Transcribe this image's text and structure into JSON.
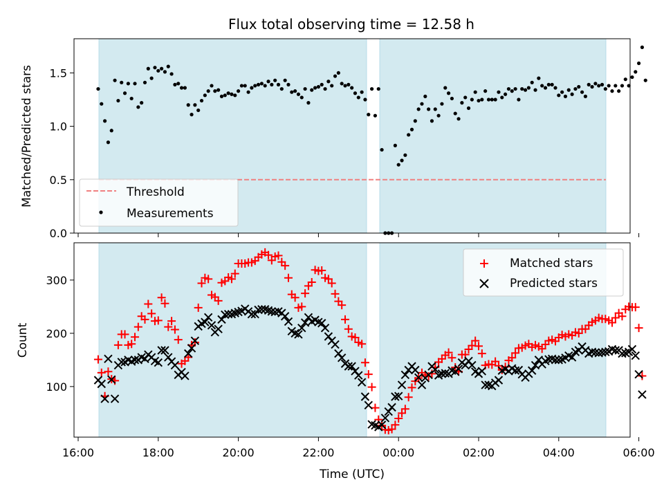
{
  "chart_data": [
    {
      "type": "scatter",
      "title": "Flux total observing time = 12.58 h",
      "xlabel": "",
      "ylabel": "Matched/Predicted stars",
      "ylim": [
        0,
        1.82
      ],
      "yticks": [
        "0.0",
        "0.5",
        "1.0",
        "1.5"
      ],
      "grid": false,
      "legend_position": "lower-left",
      "threshold": {
        "name": "Threshold",
        "value": 0.5,
        "color": "#f08080"
      },
      "series": [
        {
          "name": "Measurements",
          "color": "#000000",
          "points": [
            [
              "16:30",
              1.35
            ],
            [
              "16:35",
              1.21
            ],
            [
              "16:40",
              1.05
            ],
            [
              "16:45",
              0.85
            ],
            [
              "16:50",
              0.96
            ],
            [
              "16:55",
              1.43
            ],
            [
              "17:00",
              1.24
            ],
            [
              "17:05",
              1.41
            ],
            [
              "17:10",
              1.31
            ],
            [
              "17:15",
              1.4
            ],
            [
              "17:20",
              1.26
            ],
            [
              "17:25",
              1.4
            ],
            [
              "17:30",
              1.18
            ],
            [
              "17:35",
              1.22
            ],
            [
              "17:40",
              1.41
            ],
            [
              "17:45",
              1.54
            ],
            [
              "17:50",
              1.45
            ],
            [
              "17:55",
              1.55
            ],
            [
              "18:00",
              1.52
            ],
            [
              "18:05",
              1.54
            ],
            [
              "18:10",
              1.51
            ],
            [
              "18:15",
              1.56
            ],
            [
              "18:20",
              1.49
            ],
            [
              "18:25",
              1.39
            ],
            [
              "18:30",
              1.4
            ],
            [
              "18:35",
              1.36
            ],
            [
              "18:40",
              1.36
            ],
            [
              "18:45",
              1.2
            ],
            [
              "18:50",
              1.11
            ],
            [
              "18:55",
              1.2
            ],
            [
              "19:00",
              1.15
            ],
            [
              "19:05",
              1.24
            ],
            [
              "19:10",
              1.29
            ],
            [
              "19:15",
              1.33
            ],
            [
              "19:20",
              1.38
            ],
            [
              "19:25",
              1.33
            ],
            [
              "19:30",
              1.34
            ],
            [
              "19:35",
              1.28
            ],
            [
              "19:40",
              1.29
            ],
            [
              "19:45",
              1.31
            ],
            [
              "19:50",
              1.3
            ],
            [
              "19:55",
              1.29
            ],
            [
              "20:00",
              1.33
            ],
            [
              "20:05",
              1.38
            ],
            [
              "20:10",
              1.38
            ],
            [
              "20:15",
              1.32
            ],
            [
              "20:20",
              1.36
            ],
            [
              "20:25",
              1.38
            ],
            [
              "20:30",
              1.39
            ],
            [
              "20:35",
              1.4
            ],
            [
              "20:40",
              1.38
            ],
            [
              "20:45",
              1.42
            ],
            [
              "20:50",
              1.39
            ],
            [
              "20:55",
              1.43
            ],
            [
              "21:00",
              1.39
            ],
            [
              "21:05",
              1.35
            ],
            [
              "21:10",
              1.43
            ],
            [
              "21:15",
              1.39
            ],
            [
              "21:20",
              1.32
            ],
            [
              "21:25",
              1.33
            ],
            [
              "21:30",
              1.3
            ],
            [
              "21:35",
              1.27
            ],
            [
              "21:40",
              1.35
            ],
            [
              "21:45",
              1.22
            ],
            [
              "21:50",
              1.34
            ],
            [
              "21:55",
              1.36
            ],
            [
              "22:00",
              1.37
            ],
            [
              "22:05",
              1.39
            ],
            [
              "22:10",
              1.35
            ],
            [
              "22:15",
              1.42
            ],
            [
              "22:20",
              1.38
            ],
            [
              "22:25",
              1.47
            ],
            [
              "22:30",
              1.5
            ],
            [
              "22:35",
              1.4
            ],
            [
              "22:40",
              1.38
            ],
            [
              "22:45",
              1.39
            ],
            [
              "22:50",
              1.36
            ],
            [
              "22:55",
              1.31
            ],
            [
              "23:00",
              1.27
            ],
            [
              "23:05",
              1.32
            ],
            [
              "23:10",
              1.25
            ],
            [
              "23:15",
              1.11
            ],
            [
              "23:20",
              1.35
            ],
            [
              "23:25",
              1.1
            ],
            [
              "23:30",
              1.35
            ],
            [
              "23:35",
              0.78
            ],
            [
              "23:40",
              0.0
            ],
            [
              "23:45",
              0.0
            ],
            [
              "23:50",
              0.0
            ],
            [
              "23:55",
              0.82
            ],
            [
              "00:00",
              0.64
            ],
            [
              "00:05",
              0.68
            ],
            [
              "00:10",
              0.73
            ],
            [
              "00:15",
              0.92
            ],
            [
              "00:20",
              0.97
            ],
            [
              "00:25",
              1.05
            ],
            [
              "00:30",
              1.16
            ],
            [
              "00:35",
              1.21
            ],
            [
              "00:40",
              1.28
            ],
            [
              "00:45",
              1.16
            ],
            [
              "00:50",
              1.05
            ],
            [
              "00:55",
              1.16
            ],
            [
              "01:00",
              1.1
            ],
            [
              "01:05",
              1.21
            ],
            [
              "01:10",
              1.36
            ],
            [
              "01:15",
              1.31
            ],
            [
              "01:20",
              1.26
            ],
            [
              "01:25",
              1.12
            ],
            [
              "01:30",
              1.07
            ],
            [
              "01:35",
              1.22
            ],
            [
              "01:40",
              1.27
            ],
            [
              "01:45",
              1.17
            ],
            [
              "01:50",
              1.25
            ],
            [
              "01:55",
              1.32
            ],
            [
              "02:00",
              1.24
            ],
            [
              "02:05",
              1.25
            ],
            [
              "02:10",
              1.33
            ],
            [
              "02:15",
              1.25
            ],
            [
              "02:20",
              1.25
            ],
            [
              "02:25",
              1.25
            ],
            [
              "02:30",
              1.32
            ],
            [
              "02:35",
              1.27
            ],
            [
              "02:40",
              1.3
            ],
            [
              "02:45",
              1.35
            ],
            [
              "02:50",
              1.33
            ],
            [
              "02:55",
              1.35
            ],
            [
              "03:00",
              1.25
            ],
            [
              "03:05",
              1.35
            ],
            [
              "03:10",
              1.34
            ],
            [
              "03:15",
              1.36
            ],
            [
              "03:20",
              1.41
            ],
            [
              "03:25",
              1.34
            ],
            [
              "03:30",
              1.45
            ],
            [
              "03:35",
              1.38
            ],
            [
              "03:40",
              1.36
            ],
            [
              "03:45",
              1.39
            ],
            [
              "03:50",
              1.39
            ],
            [
              "03:55",
              1.36
            ],
            [
              "04:00",
              1.29
            ],
            [
              "04:05",
              1.32
            ],
            [
              "04:10",
              1.28
            ],
            [
              "04:15",
              1.34
            ],
            [
              "04:20",
              1.3
            ],
            [
              "04:25",
              1.35
            ],
            [
              "04:30",
              1.37
            ],
            [
              "04:35",
              1.32
            ],
            [
              "04:40",
              1.28
            ],
            [
              "04:45",
              1.39
            ],
            [
              "04:50",
              1.37
            ],
            [
              "04:55",
              1.4
            ],
            [
              "05:00",
              1.38
            ],
            [
              "05:05",
              1.39
            ],
            [
              "05:10",
              1.35
            ],
            [
              "05:15",
              1.38
            ],
            [
              "05:20",
              1.33
            ],
            [
              "05:25",
              1.38
            ],
            [
              "05:30",
              1.33
            ],
            [
              "05:35",
              1.38
            ],
            [
              "05:40",
              1.44
            ],
            [
              "05:45",
              1.38
            ],
            [
              "05:50",
              1.46
            ],
            [
              "05:55",
              1.51
            ],
            [
              "06:00",
              1.59
            ],
            [
              "06:05",
              1.74
            ],
            [
              "06:10",
              1.43
            ]
          ]
        }
      ]
    },
    {
      "type": "scatter",
      "title": "",
      "xlabel": "Time (UTC)",
      "ylabel": "Count",
      "xticks": [
        "16:00",
        "18:00",
        "20:00",
        "22:00",
        "00:00",
        "02:00",
        "04:00",
        "06:00"
      ],
      "ylim": [
        5,
        370
      ],
      "yticks": [
        "100",
        "200",
        "300"
      ],
      "grid": false,
      "legend_position": "upper-right",
      "series": [
        {
          "name": "Matched stars",
          "color": "#ff0000",
          "marker": "plus",
          "values": [
            151,
            126,
            82,
            128,
            114,
            111,
            178,
            198,
            198,
            178,
            180,
            193,
            212,
            232,
            226,
            255,
            237,
            223,
            224,
            267,
            256,
            212,
            223,
            207,
            188,
            143,
            148,
            155,
            178,
            183,
            248,
            294,
            304,
            302,
            272,
            268,
            261,
            295,
            298,
            305,
            302,
            312,
            331,
            331,
            331,
            333,
            333,
            336,
            343,
            348,
            352,
            347,
            337,
            344,
            346,
            334,
            327,
            304,
            273,
            267,
            248,
            250,
            275,
            289,
            296,
            319,
            317,
            318,
            304,
            302,
            294,
            274,
            260,
            253,
            226,
            208,
            194,
            192,
            183,
            180,
            145,
            123,
            99,
            60,
            38,
            27,
            19,
            18,
            20,
            28,
            40,
            50,
            58,
            80,
            98,
            110,
            116,
            126,
            122,
            119,
            124,
            136,
            146,
            152,
            159,
            164,
            154,
            136,
            128,
            160,
            160,
            170,
            177,
            186,
            176,
            162,
            140,
            142,
            141,
            147,
            139,
            131,
            137,
            149,
            154,
            163,
            172,
            173,
            177,
            180,
            174,
            178,
            175,
            171,
            179,
            186,
            188,
            185,
            192,
            197,
            194,
            198,
            196,
            202,
            200,
            208,
            208,
            215,
            221,
            224,
            229,
            227,
            227,
            224,
            220,
            229,
            238,
            232,
            245,
            250,
            249,
            249,
            210,
            120
          ]
        },
        {
          "name": "Predicted stars",
          "color": "#000000",
          "marker": "x",
          "values": [
            112,
            105,
            77,
            152,
            113,
            77,
            140,
            146,
            146,
            150,
            147,
            150,
            150,
            155,
            152,
            160,
            155,
            148,
            145,
            168,
            168,
            155,
            147,
            140,
            122,
            127,
            120,
            162,
            172,
            186,
            213,
            218,
            221,
            230,
            215,
            202,
            208,
            226,
            235,
            236,
            236,
            238,
            240,
            242,
            246,
            241,
            236,
            236,
            244,
            245,
            245,
            243,
            241,
            240,
            241,
            238,
            232,
            222,
            204,
            200,
            198,
            210,
            220,
            230,
            222,
            225,
            221,
            219,
            210,
            194,
            186,
            179,
            162,
            154,
            143,
            138,
            138,
            129,
            121,
            108,
            81,
            65,
            29,
            27,
            24,
            28,
            41,
            53,
            61,
            81,
            82,
            103,
            122,
            131,
            138,
            131,
            117,
            103,
            116,
            122,
            138,
            132,
            121,
            124,
            125,
            124,
            130,
            128,
            133,
            145,
            140,
            148,
            140,
            128,
            124,
            129,
            103,
            103,
            101,
            107,
            112,
            130,
            133,
            129,
            134,
            130,
            131,
            123,
            117,
            124,
            130,
            140,
            150,
            142,
            148,
            151,
            152,
            150,
            150,
            151,
            154,
            158,
            155,
            165,
            168,
            175,
            168,
            162,
            165,
            164,
            163,
            164,
            165,
            166,
            170,
            168,
            168,
            162,
            163,
            165,
            170,
            158,
            123,
            85
          ]
        }
      ]
    }
  ]
}
